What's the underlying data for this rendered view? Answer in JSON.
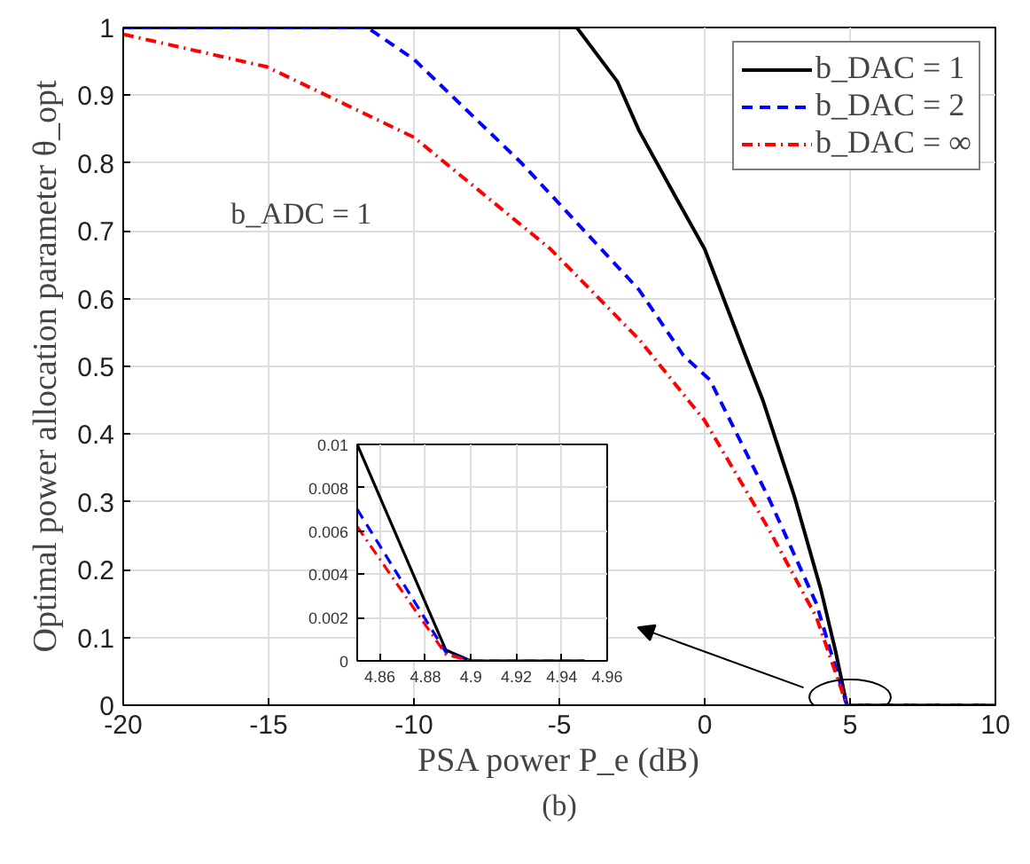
{
  "chart_data": [
    {
      "type": "line",
      "xlabel": "PSA power P_e (dB)",
      "ylabel": "Optimal power allocation parameter θ_opt",
      "xlim": [
        -20,
        10
      ],
      "ylim": [
        0,
        1
      ],
      "xticks": [
        -20,
        -15,
        -10,
        -5,
        0,
        5,
        10
      ],
      "yticks": [
        0,
        0.1,
        0.2,
        0.3,
        0.4,
        0.5,
        0.6,
        0.7,
        0.8,
        0.9,
        1
      ],
      "grid": true,
      "legend": "top right",
      "annotations": [
        "b_ADC = 1",
        "(b)"
      ],
      "series": [
        {
          "name": "b_DAC = 1",
          "color": "#000000",
          "line_style": "solid",
          "x": [
            -20,
            -4.4,
            -3,
            -2.26,
            -1,
            0,
            1.4,
            2,
            3.1,
            4,
            4.5,
            4.89,
            10
          ],
          "values": [
            1,
            1,
            0.92,
            0.848,
            0.75,
            0.673,
            0.516,
            0.45,
            0.306,
            0.17,
            0.08,
            0,
            0
          ]
        },
        {
          "name": "b_DAC = 2",
          "color": "#0000ff",
          "line_style": "dashed",
          "x": [
            -20,
            -11.6,
            -10,
            -6.3,
            -2.26,
            -0.73,
            0.18,
            2.2,
            3.84,
            4.89,
            10
          ],
          "values": [
            1,
            1,
            0.953,
            0.8,
            0.613,
            0.516,
            0.48,
            0.306,
            0.15,
            0,
            0
          ]
        },
        {
          "name": "b_DAC = ∞",
          "color": "#ff0000",
          "line_style": "dashdot",
          "x": [
            -20,
            -15.06,
            -10,
            -5.3,
            -2.26,
            0,
            2.2,
            3.84,
            4.89,
            10
          ],
          "values": [
            0.99,
            0.942,
            0.838,
            0.673,
            0.54,
            0.42,
            0.26,
            0.13,
            0,
            0
          ]
        }
      ]
    },
    {
      "type": "line",
      "xlim": [
        4.85,
        4.96
      ],
      "ylim": [
        0,
        0.01
      ],
      "xticks": [
        4.86,
        4.88,
        4.9,
        4.92,
        4.94,
        4.96
      ],
      "yticks": [
        0,
        0.002,
        0.004,
        0.006,
        0.008,
        0.01
      ],
      "grid": true,
      "series": [
        {
          "color": "#000000",
          "line_style": "solid",
          "x": [
            4.85,
            4.889,
            4.9,
            4.95
          ],
          "values": [
            0.01,
            0.0005,
            0,
            0
          ]
        },
        {
          "color": "#0000ff",
          "line_style": "dashed",
          "x": [
            4.85,
            4.889,
            4.9,
            4.95
          ],
          "values": [
            0.007,
            0.0004,
            0,
            0
          ]
        },
        {
          "color": "#ff0000",
          "line_style": "dashdot",
          "x": [
            4.85,
            4.889,
            4.9,
            4.95
          ],
          "values": [
            0.0062,
            0.0003,
            0,
            0
          ]
        }
      ]
    }
  ]
}
